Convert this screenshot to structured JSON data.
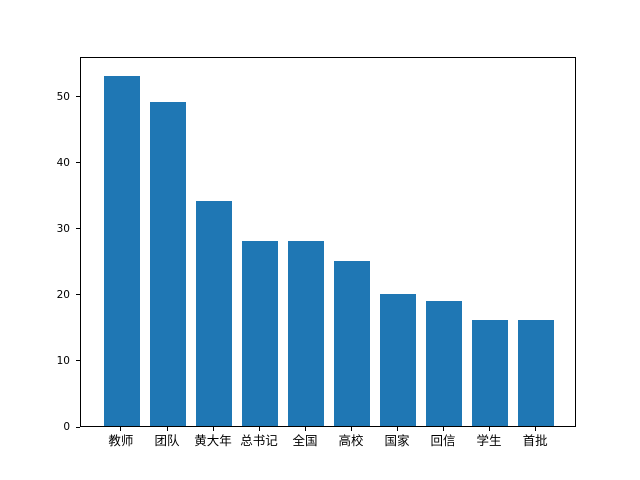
{
  "chart_data": {
    "type": "bar",
    "title": "",
    "xlabel": "",
    "ylabel": "",
    "categories": [
      "教师",
      "团队",
      "黄大年",
      "总书记",
      "全国",
      "高校",
      "国家",
      "回信",
      "学生",
      "首批"
    ],
    "values": [
      53,
      49,
      34,
      28,
      28,
      25,
      20,
      19,
      16,
      16
    ],
    "yticks": [
      0,
      10,
      20,
      30,
      40,
      50
    ],
    "ylim": [
      0,
      56
    ],
    "bar_width_fraction": 0.8,
    "bar_color": "#1f77b4",
    "axis_color": "#000000",
    "background_color": "#ffffff",
    "grid": false,
    "legend": false
  }
}
